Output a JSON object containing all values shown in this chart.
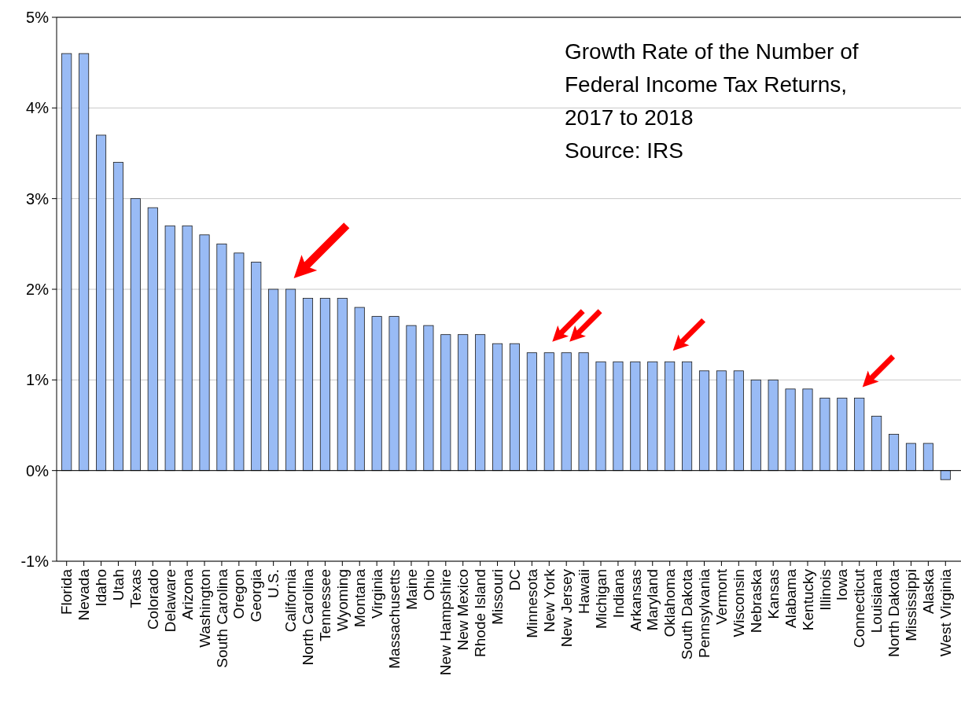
{
  "chart_data": {
    "type": "bar",
    "title": "Growth Rate of the Number of Federal Income Tax Returns, 2017 to 2018",
    "annotations": [
      "Source: IRS"
    ],
    "categories": [
      "Florida",
      "Nevada",
      "Idaho",
      "Utah",
      "Texas",
      "Colorado",
      "Delaware",
      "Arizona",
      "Washington",
      "South Carolina",
      "Oregon",
      "Georgia",
      "U.S.",
      "California",
      "North Carolina",
      "Tennessee",
      "Wyoming",
      "Montana",
      "Virginia",
      "Massachusetts",
      "Maine",
      "Ohio",
      "New Hampshire",
      "New Mexico",
      "Rhode Island",
      "Missouri",
      "DC",
      "Minnesota",
      "New York",
      "New Jersey",
      "Hawaii",
      "Michigan",
      "Indiana",
      "Arkansas",
      "Maryland",
      "Oklahoma",
      "South Dakota",
      "Pennsylvania",
      "Vermont",
      "Wisconsin",
      "Nebraska",
      "Kansas",
      "Alabama",
      "Kentucky",
      "Illinois",
      "Iowa",
      "Connecticut",
      "Louisiana",
      "North Dakota",
      "Mississippi",
      "Alaska",
      "West Virginia"
    ],
    "values": [
      4.6,
      4.6,
      3.7,
      3.4,
      3.0,
      2.9,
      2.7,
      2.7,
      2.6,
      2.5,
      2.4,
      2.3,
      2.0,
      2.0,
      1.9,
      1.9,
      1.9,
      1.8,
      1.7,
      1.7,
      1.6,
      1.6,
      1.5,
      1.5,
      1.5,
      1.4,
      1.4,
      1.3,
      1.3,
      1.3,
      1.3,
      1.2,
      1.2,
      1.2,
      1.2,
      1.2,
      1.2,
      1.1,
      1.1,
      1.1,
      1.0,
      1.0,
      0.9,
      0.9,
      0.8,
      0.8,
      0.8,
      0.6,
      0.4,
      0.3,
      0.3,
      -0.1
    ],
    "color": "#99bbf5",
    "ylim": [
      -1,
      5
    ],
    "yticks": [
      {
        "value": -1,
        "label": "-1%"
      },
      {
        "value": 0,
        "label": "0%"
      },
      {
        "value": 1,
        "label": "1%"
      },
      {
        "value": 2,
        "label": "2%"
      },
      {
        "value": 3,
        "label": "3%"
      },
      {
        "value": 4,
        "label": "4%"
      },
      {
        "value": 5,
        "label": "5%"
      }
    ],
    "grid": "y"
  }
}
